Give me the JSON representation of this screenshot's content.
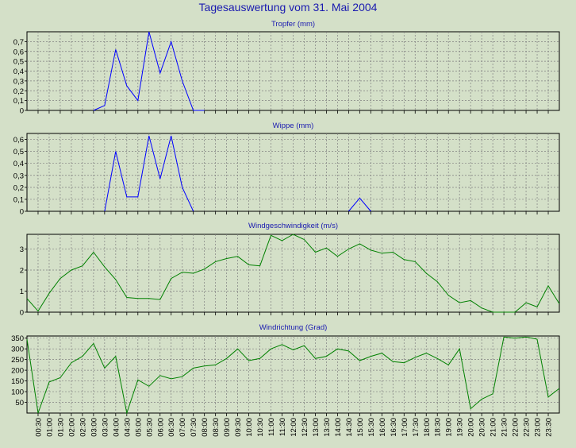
{
  "title": "Tagesauswertung vom 31. Mai 2004",
  "colors": {
    "background": "#d4e0c8",
    "blue": "#0000ff",
    "green": "#008000",
    "grid": "#808080",
    "title": "#1a1ab0"
  },
  "x_labels": [
    "00:30",
    "01:00",
    "01:30",
    "02:00",
    "02:30",
    "03:00",
    "03:30",
    "04:00",
    "04:30",
    "05:00",
    "05:30",
    "06:00",
    "06:30",
    "07:00",
    "07:30",
    "08:00",
    "08:30",
    "09:00",
    "09:30",
    "10:00",
    "10:30",
    "11:00",
    "11:30",
    "12:00",
    "12:30",
    "13:00",
    "13:30",
    "14:00",
    "14:30",
    "15:00",
    "15:30",
    "16:00",
    "16:30",
    "17:00",
    "17:30",
    "18:00",
    "18:30",
    "19:00",
    "19:30",
    "20:00",
    "20:30",
    "21:00",
    "21:30",
    "22:00",
    "22:30",
    "23:00",
    "23:30"
  ],
  "chart_data": [
    {
      "type": "line",
      "title": "Tropfer (mm)",
      "ylim": [
        0,
        0.8
      ],
      "yticks": [
        "0",
        "0,1",
        "0,2",
        "0,3",
        "0,4",
        "0,5",
        "0,6",
        "0,7"
      ],
      "ytick_values": [
        0,
        0.1,
        0.2,
        0.3,
        0.4,
        0.5,
        0.6,
        0.7
      ],
      "color": "blue",
      "x": [
        6,
        7,
        8,
        9,
        10,
        11,
        12,
        13,
        14,
        15,
        16
      ],
      "y": [
        0,
        0.05,
        0.62,
        0.25,
        0.1,
        0.8,
        0.38,
        0.7,
        0.3,
        0,
        0
      ]
    },
    {
      "type": "line",
      "title": "Wippe (mm)",
      "ylim": [
        0,
        0.65
      ],
      "yticks": [
        "0",
        "0,1",
        "0,2",
        "0,3",
        "0,4",
        "0,5",
        "0,6"
      ],
      "ytick_values": [
        0,
        0.1,
        0.2,
        0.3,
        0.4,
        0.5,
        0.6
      ],
      "color": "blue",
      "segments": [
        {
          "x": [
            7,
            8,
            9,
            10,
            11,
            12,
            13,
            14,
            15
          ],
          "y": [
            0,
            0.5,
            0.12,
            0.12,
            0.63,
            0.27,
            0.63,
            0.2,
            0
          ]
        },
        {
          "x": [
            29,
            30,
            31
          ],
          "y": [
            0,
            0.11,
            0
          ]
        }
      ]
    },
    {
      "type": "line",
      "title": "Windgeschwindigkeit (m/s)",
      "ylim": [
        0,
        3.7
      ],
      "yticks": [
        "0",
        "1",
        "2",
        "3"
      ],
      "ytick_values": [
        0,
        1,
        2,
        3
      ],
      "color": "green",
      "x": [
        0,
        1,
        2,
        3,
        4,
        5,
        6,
        7,
        8,
        9,
        10,
        11,
        12,
        13,
        14,
        15,
        16,
        17,
        18,
        19,
        20,
        21,
        22,
        23,
        24,
        25,
        26,
        27,
        28,
        29,
        30,
        31,
        32,
        33,
        34,
        35,
        36,
        37,
        38,
        39,
        40,
        41,
        42,
        43,
        44,
        45,
        46,
        47,
        48
      ],
      "y": [
        0.65,
        0.05,
        0.9,
        1.6,
        2.0,
        2.2,
        2.85,
        2.15,
        1.55,
        0.7,
        0.65,
        0.65,
        0.6,
        1.6,
        1.9,
        1.85,
        2.05,
        2.4,
        2.55,
        2.65,
        2.25,
        2.2,
        3.65,
        3.4,
        3.7,
        3.45,
        2.85,
        3.05,
        2.65,
        3.0,
        3.25,
        2.95,
        2.8,
        2.85,
        2.5,
        2.4,
        1.85,
        1.45,
        0.8,
        0.45,
        0.55,
        0.2,
        0,
        0,
        0,
        0.45,
        0.25,
        1.25,
        0.4
      ]
    },
    {
      "type": "line",
      "title": "Windrichtung (Grad)",
      "ylim": [
        0,
        360
      ],
      "yticks": [
        "50",
        "100",
        "150",
        "200",
        "250",
        "300",
        "350"
      ],
      "ytick_values": [
        50,
        100,
        150,
        200,
        250,
        300,
        350
      ],
      "color": "green",
      "x": [
        0,
        1,
        2,
        3,
        4,
        5,
        6,
        7,
        8,
        9,
        10,
        11,
        12,
        13,
        14,
        15,
        16,
        17,
        18,
        19,
        20,
        21,
        22,
        23,
        24,
        25,
        26,
        27,
        28,
        29,
        30,
        31,
        32,
        33,
        34,
        35,
        36,
        37,
        38,
        39,
        40,
        41,
        42,
        43,
        44,
        45,
        46,
        47,
        48
      ],
      "y": [
        345,
        0,
        145,
        165,
        235,
        265,
        325,
        210,
        265,
        0,
        155,
        125,
        175,
        160,
        170,
        210,
        220,
        225,
        255,
        300,
        245,
        255,
        300,
        320,
        295,
        315,
        255,
        265,
        300,
        290,
        245,
        265,
        280,
        240,
        235,
        260,
        280,
        255,
        225,
        300,
        20,
        65,
        90,
        355,
        350,
        355,
        345,
        75,
        115
      ]
    }
  ]
}
